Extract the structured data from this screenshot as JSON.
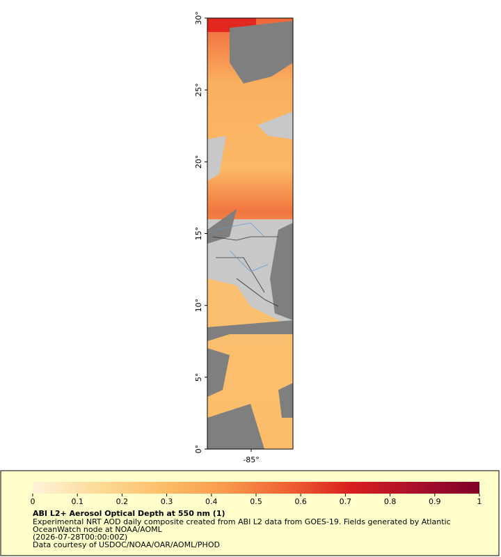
{
  "map": {
    "lat_ticks": [
      {
        "value": 0,
        "label": "0°"
      },
      {
        "value": 5,
        "label": "5°"
      },
      {
        "value": 10,
        "label": "10°"
      },
      {
        "value": 15,
        "label": "15°"
      },
      {
        "value": 20,
        "label": "20°"
      },
      {
        "value": 25,
        "label": "25°"
      },
      {
        "value": 30,
        "label": "30°"
      }
    ],
    "lat_range": [
      0,
      30
    ],
    "lon_ticks": [
      {
        "value": -85,
        "label": "-85°"
      }
    ]
  },
  "legend": {
    "range": [
      0,
      1
    ],
    "ticks": [
      0,
      0.1,
      0.2,
      0.3,
      0.4,
      0.5,
      0.6,
      0.7,
      0.8,
      0.9,
      1
    ],
    "colors": [
      "#fff3dc",
      "#fddb98",
      "#fcc06a",
      "#f89a4c",
      "#ee6233",
      "#d81e1e",
      "#a8102c",
      "#800026"
    ],
    "title": "ABI L2+ Aerosol Optical Depth at 550 nm (1)",
    "lines": [
      "Experimental NRT AOD daily composite created from ABI L2 data from GOES-19. Fields generated by Atlantic",
      "OceanWatch node at NOAA/AOML",
      "(2026-07-28T00:00:00Z)",
      "Data courtesy of USDOC/NOAA/OAR/AOML/PHOD"
    ]
  }
}
